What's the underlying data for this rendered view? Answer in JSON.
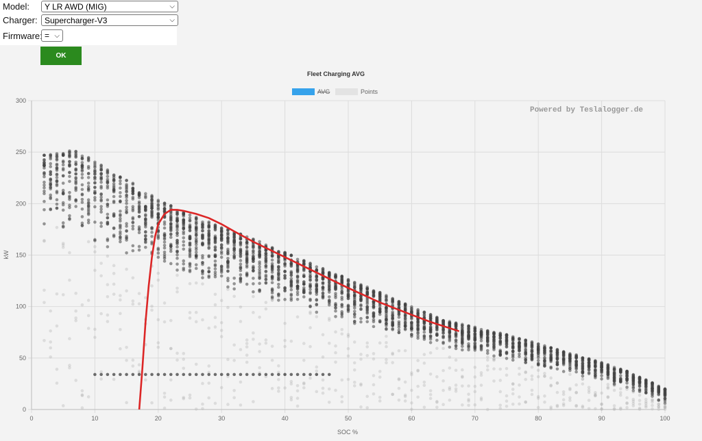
{
  "form": {
    "model_label": "Model:",
    "model_value": "Y LR AWD (MIG)",
    "charger_label": "Charger:",
    "charger_value": "Supercharger-V3",
    "firmware_label": "Firmware:",
    "firmware_value": "=",
    "ok_label": "OK"
  },
  "colors": {
    "ok_button": "#2b8a1e",
    "avg_legend": "#36a2eb",
    "avg_line": "#dc2626",
    "points": "#555555"
  },
  "chart_data": {
    "type": "scatter",
    "title": "Fleet Charging AVG",
    "watermark": "Powered by Teslalogger.de",
    "xlabel": "SOC %",
    "ylabel": "kW",
    "xlim": [
      0,
      100
    ],
    "ylim": [
      0,
      300
    ],
    "xticks": [
      0,
      10,
      20,
      30,
      40,
      50,
      60,
      70,
      80,
      90,
      100
    ],
    "yticks": [
      0,
      50,
      100,
      150,
      200,
      250,
      300
    ],
    "grid": true,
    "legend_position": "top-center",
    "legend": [
      {
        "name": "AVG",
        "hidden": true
      },
      {
        "name": "Points",
        "hidden": false
      }
    ],
    "series": [
      {
        "name": "AVG",
        "type": "line",
        "points": [
          [
            17,
            0
          ],
          [
            17.5,
            40
          ],
          [
            18,
            85
          ],
          [
            18.5,
            120
          ],
          [
            19,
            148
          ],
          [
            19.5,
            168
          ],
          [
            20,
            180
          ],
          [
            21,
            190
          ],
          [
            22,
            194
          ],
          [
            23,
            194
          ],
          [
            24,
            193
          ],
          [
            26,
            190
          ],
          [
            28,
            186
          ],
          [
            30,
            180
          ],
          [
            32,
            173
          ],
          [
            35,
            163
          ],
          [
            40,
            148
          ],
          [
            45,
            133
          ],
          [
            50,
            118
          ],
          [
            55,
            104
          ],
          [
            60,
            92
          ],
          [
            63,
            85
          ],
          [
            65,
            81
          ],
          [
            67.5,
            76
          ]
        ]
      },
      {
        "name": "Points",
        "type": "scatter",
        "dense_envelope": [
          [
            3,
            250
          ],
          [
            5,
            252
          ],
          [
            7,
            251
          ],
          [
            10,
            242
          ],
          [
            12,
            235
          ],
          [
            15,
            224
          ],
          [
            18,
            212
          ],
          [
            20,
            204
          ],
          [
            22,
            198
          ],
          [
            25,
            190
          ],
          [
            30,
            178
          ],
          [
            35,
            166
          ],
          [
            40,
            153
          ],
          [
            45,
            140
          ],
          [
            50,
            127
          ],
          [
            55,
            114
          ],
          [
            60,
            100
          ],
          [
            65,
            87
          ],
          [
            70,
            80
          ],
          [
            75,
            73
          ],
          [
            80,
            64
          ],
          [
            85,
            55
          ],
          [
            90,
            46
          ],
          [
            95,
            35
          ],
          [
            100,
            20
          ]
        ],
        "dense_lower": [
          [
            3,
            180
          ],
          [
            5,
            175
          ],
          [
            8,
            168
          ],
          [
            10,
            160
          ],
          [
            15,
            150
          ],
          [
            20,
            140
          ],
          [
            25,
            130
          ],
          [
            30,
            120
          ],
          [
            35,
            112
          ],
          [
            40,
            103
          ],
          [
            45,
            94
          ],
          [
            50,
            85
          ],
          [
            55,
            76
          ],
          [
            60,
            67
          ],
          [
            65,
            60
          ],
          [
            70,
            55
          ],
          [
            75,
            48
          ],
          [
            80,
            40
          ],
          [
            85,
            35
          ],
          [
            90,
            28
          ],
          [
            95,
            18
          ],
          [
            100,
            5
          ]
        ],
        "band_kw": 34,
        "band_x_range": [
          10,
          47
        ]
      }
    ]
  }
}
